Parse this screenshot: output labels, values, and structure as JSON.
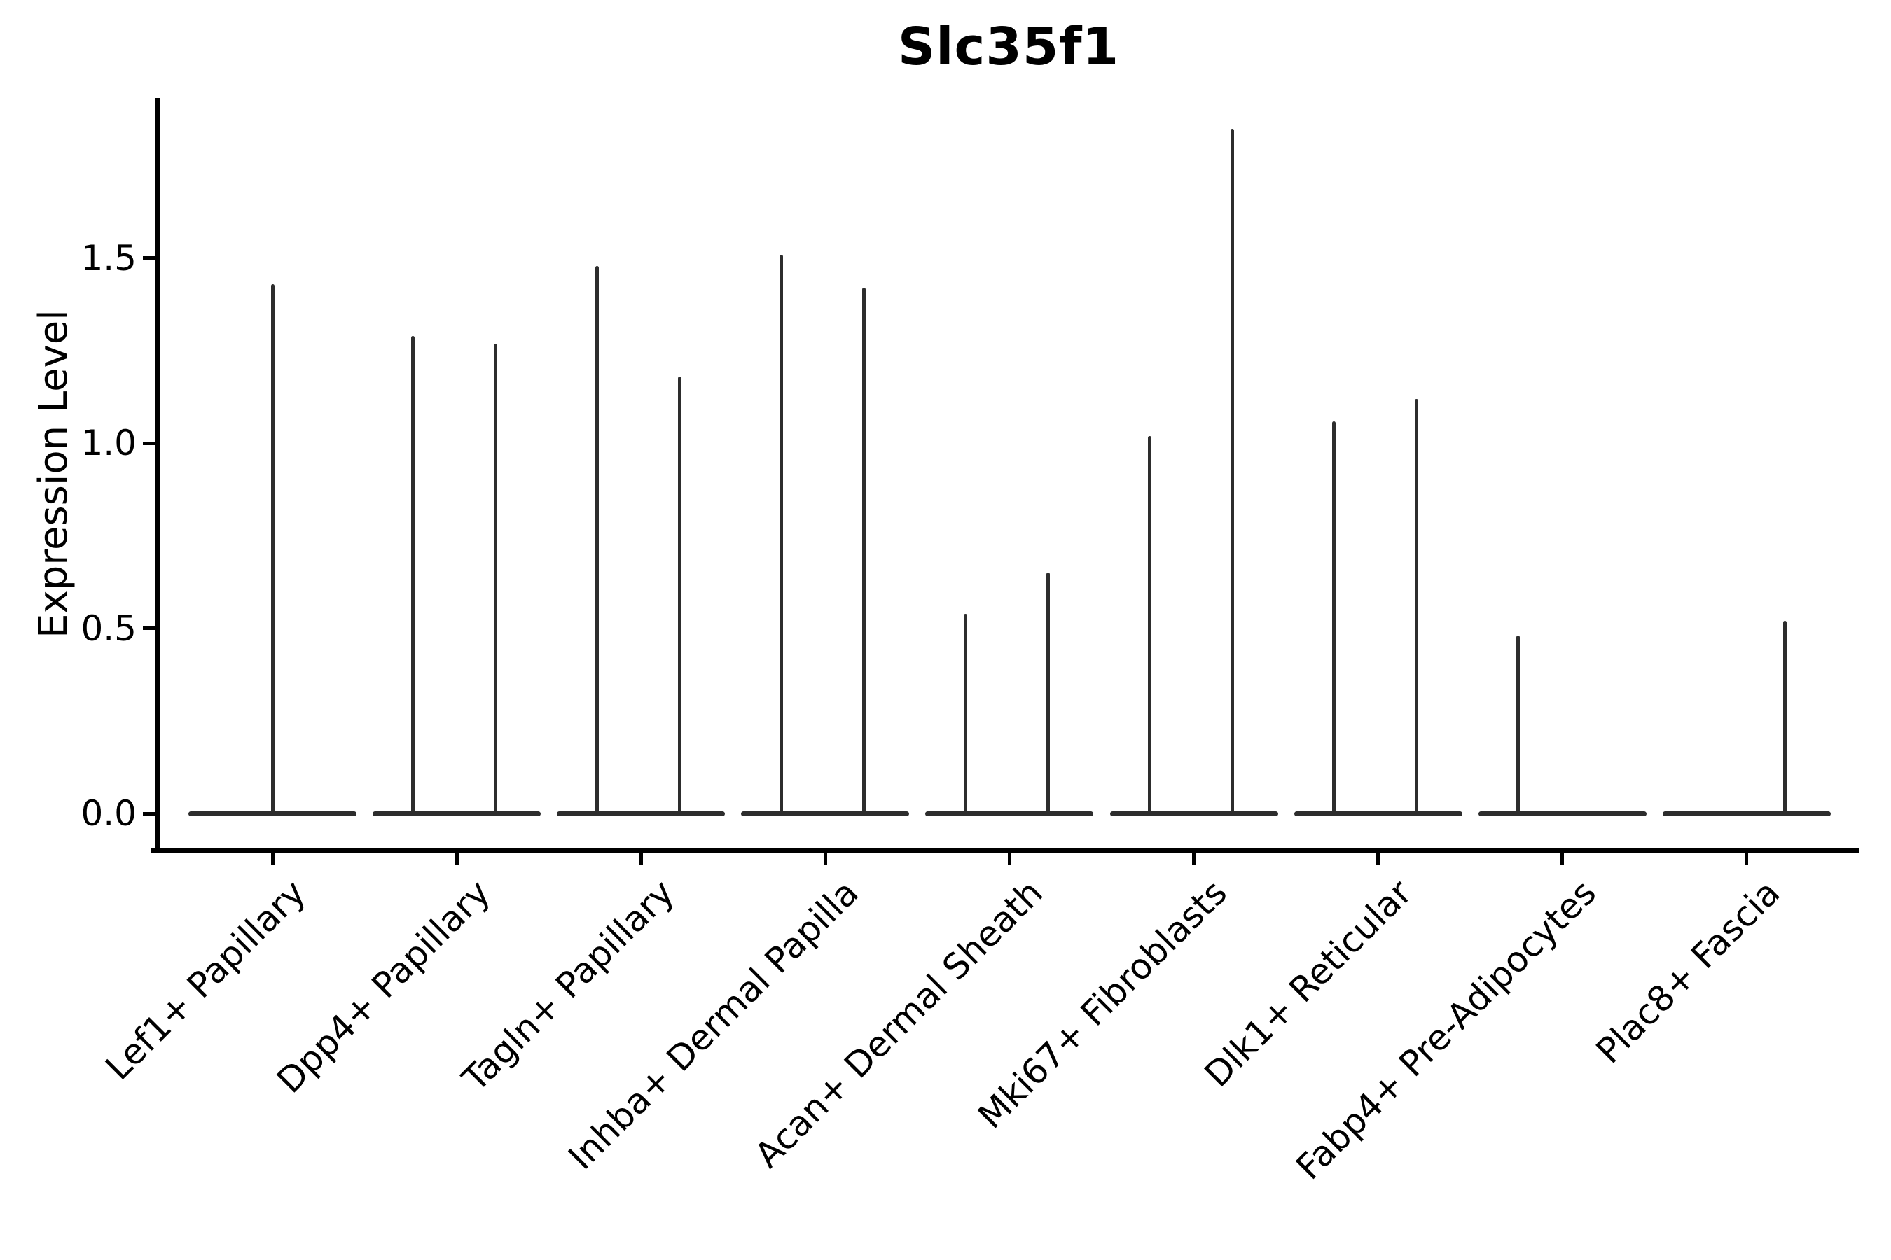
{
  "title": "Slc35f1",
  "y_axis": {
    "label": "Expression Level",
    "tick_labels": [
      "0.0",
      "0.5",
      "1.0",
      "1.5"
    ]
  },
  "x_axis": {
    "tick_labels": [
      "Lef1+ Papillary",
      "Dpp4+ Papillary",
      "Tagln+ Papillary",
      "Inhba+ Dermal Papilla",
      "Acan+ Dermal Sheath",
      "Mki67+ Fibroblasts",
      "Dlk1+ Reticular",
      "Fabp4+ Pre-Adipocytes",
      "Plac8+ Fascia"
    ]
  },
  "colors": {
    "violin": "#2d2d2d",
    "axis": "#000000",
    "background": "#ffffff"
  },
  "chart_data": {
    "type": "violin",
    "title": "Slc35f1",
    "xlabel": "",
    "ylabel": "Expression Level",
    "ylim": [
      -0.09,
      1.93
    ],
    "yticks": [
      0.0,
      0.5,
      1.0,
      1.5
    ],
    "grid": false,
    "legend": "none",
    "description": "Needle-shaped violins: bulk of expression values at 0 form a flat horizontal base per category; thin spikes rise to the maximum expression of each sub-group (left/right dodged groups, or a single centered violin).",
    "baseline_value": 0.0,
    "categories": [
      "Lef1+ Papillary",
      "Dpp4+ Papillary",
      "Tagln+ Papillary",
      "Inhba+ Dermal Papilla",
      "Acan+ Dermal Sheath",
      "Mki67+ Fibroblasts",
      "Dlk1+ Reticular",
      "Fabp4+ Pre-Adipocytes",
      "Plac8+ Fascia"
    ],
    "series": [
      {
        "category": "Lef1+ Papillary",
        "spikes": [
          {
            "side": "center",
            "max": 1.43
          }
        ]
      },
      {
        "category": "Dpp4+ Papillary",
        "spikes": [
          {
            "side": "left",
            "max": 1.29
          },
          {
            "side": "right",
            "max": 1.27
          }
        ]
      },
      {
        "category": "Tagln+ Papillary",
        "spikes": [
          {
            "side": "left",
            "max": 1.48
          },
          {
            "side": "right",
            "max": 1.18
          }
        ]
      },
      {
        "category": "Inhba+ Dermal Papilla",
        "spikes": [
          {
            "side": "left",
            "max": 1.51
          },
          {
            "side": "right",
            "max": 1.42
          }
        ]
      },
      {
        "category": "Acan+ Dermal Sheath",
        "spikes": [
          {
            "side": "left",
            "max": 0.54
          },
          {
            "side": "right",
            "max": 0.65
          }
        ]
      },
      {
        "category": "Mki67+ Fibroblasts",
        "spikes": [
          {
            "side": "left",
            "max": 1.02
          },
          {
            "side": "right",
            "max": 1.85
          }
        ]
      },
      {
        "category": "Dlk1+ Reticular",
        "spikes": [
          {
            "side": "left",
            "max": 1.06
          },
          {
            "side": "right",
            "max": 1.12
          }
        ]
      },
      {
        "category": "Fabp4+ Pre-Adipocytes",
        "spikes": [
          {
            "side": "left",
            "max": 0.48
          }
        ]
      },
      {
        "category": "Plac8+ Fascia",
        "spikes": [
          {
            "side": "right",
            "max": 0.52
          }
        ]
      }
    ]
  }
}
